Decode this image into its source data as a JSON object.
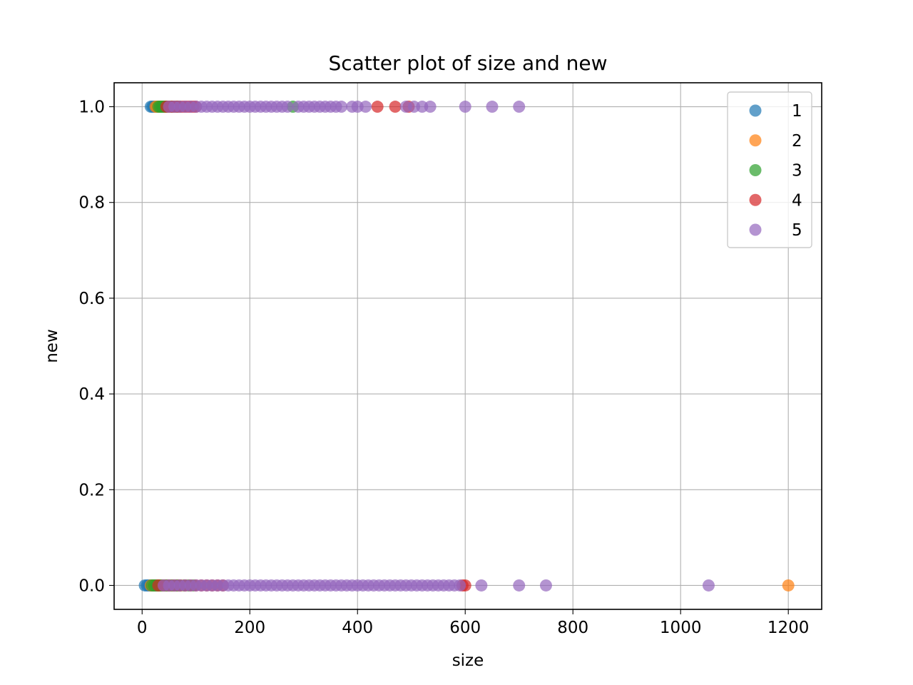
{
  "chart_data": {
    "type": "scatter",
    "title": "Scatter plot of size and new",
    "xlabel": "size",
    "ylabel": "new",
    "xlim": [
      -52,
      1262
    ],
    "ylim": [
      -0.05,
      1.05
    ],
    "xticks": [
      0,
      200,
      400,
      600,
      800,
      1000,
      1200
    ],
    "xtick_labels": [
      "0",
      "200",
      "400",
      "600",
      "800",
      "1000",
      "1200"
    ],
    "yticks": [
      0.0,
      0.2,
      0.4,
      0.6,
      0.8,
      1.0
    ],
    "ytick_labels": [
      "0.0",
      "0.2",
      "0.4",
      "0.6",
      "0.8",
      "1.0"
    ],
    "grid": true,
    "legend_position": "top-right",
    "series": [
      {
        "name": "1",
        "color": "#1f77b4",
        "points": [
          [
            5,
            0
          ],
          [
            9,
            0
          ],
          [
            12,
            0
          ],
          [
            15,
            0
          ],
          [
            18,
            0
          ],
          [
            21,
            0
          ],
          [
            24,
            0
          ],
          [
            27,
            0
          ],
          [
            30,
            0
          ],
          [
            34,
            0
          ],
          [
            38,
            0
          ],
          [
            42,
            0
          ],
          [
            46,
            0
          ],
          [
            50,
            0
          ],
          [
            55,
            0
          ],
          [
            60,
            0
          ],
          [
            65,
            0
          ],
          [
            70,
            0
          ],
          [
            16,
            1
          ],
          [
            19,
            1
          ],
          [
            22,
            1
          ],
          [
            25,
            1
          ],
          [
            28,
            1
          ],
          [
            31,
            1
          ],
          [
            34,
            1
          ],
          [
            38,
            1
          ],
          [
            42,
            1
          ],
          [
            46,
            1
          ],
          [
            50,
            1
          ]
        ]
      },
      {
        "name": "2",
        "color": "#ff7f0e",
        "points": [
          [
            16,
            0
          ],
          [
            20,
            0
          ],
          [
            24,
            0
          ],
          [
            28,
            0
          ],
          [
            32,
            0
          ],
          [
            36,
            0
          ],
          [
            40,
            0
          ],
          [
            45,
            0
          ],
          [
            50,
            0
          ],
          [
            55,
            0
          ],
          [
            60,
            0
          ],
          [
            66,
            0
          ],
          [
            72,
            0
          ],
          [
            80,
            0
          ],
          [
            1200,
            0
          ],
          [
            25,
            1
          ],
          [
            28,
            1
          ],
          [
            31,
            1
          ],
          [
            34,
            1
          ],
          [
            37,
            1
          ],
          [
            40,
            1
          ],
          [
            44,
            1
          ],
          [
            48,
            1
          ],
          [
            52,
            1
          ],
          [
            56,
            1
          ],
          [
            60,
            1
          ]
        ]
      },
      {
        "name": "3",
        "color": "#2ca02c",
        "points": [
          [
            18,
            0
          ],
          [
            22,
            0
          ],
          [
            26,
            0
          ],
          [
            30,
            0
          ],
          [
            34,
            0
          ],
          [
            38,
            0
          ],
          [
            42,
            0
          ],
          [
            47,
            0
          ],
          [
            52,
            0
          ],
          [
            58,
            0
          ],
          [
            64,
            0
          ],
          [
            70,
            0
          ],
          [
            78,
            0
          ],
          [
            86,
            0
          ],
          [
            95,
            0
          ],
          [
            30,
            1
          ],
          [
            33,
            1
          ],
          [
            36,
            1
          ],
          [
            39,
            1
          ],
          [
            42,
            1
          ],
          [
            45,
            1
          ],
          [
            48,
            1
          ],
          [
            52,
            1
          ],
          [
            56,
            1
          ],
          [
            60,
            1
          ],
          [
            65,
            1
          ],
          [
            70,
            1
          ],
          [
            280,
            1
          ]
        ]
      },
      {
        "name": "4",
        "color": "#d62728",
        "points": [
          [
            30,
            0
          ],
          [
            40,
            0
          ],
          [
            50,
            0
          ],
          [
            60,
            0
          ],
          [
            70,
            0
          ],
          [
            80,
            0
          ],
          [
            90,
            0
          ],
          [
            100,
            0
          ],
          [
            110,
            0
          ],
          [
            120,
            0
          ],
          [
            130,
            0
          ],
          [
            140,
            0
          ],
          [
            150,
            0
          ],
          [
            595,
            0
          ],
          [
            600,
            0
          ],
          [
            45,
            1
          ],
          [
            50,
            1
          ],
          [
            55,
            1
          ],
          [
            60,
            1
          ],
          [
            65,
            1
          ],
          [
            70,
            1
          ],
          [
            75,
            1
          ],
          [
            80,
            1
          ],
          [
            85,
            1
          ],
          [
            90,
            1
          ],
          [
            95,
            1
          ],
          [
            100,
            1
          ],
          [
            437,
            1
          ],
          [
            470,
            1
          ],
          [
            495,
            1
          ]
        ]
      },
      {
        "name": "5",
        "color": "#9467bd",
        "points": [
          [
            40,
            0
          ],
          [
            50,
            0
          ],
          [
            60,
            0
          ],
          [
            70,
            0
          ],
          [
            80,
            0
          ],
          [
            90,
            0
          ],
          [
            100,
            0
          ],
          [
            110,
            0
          ],
          [
            120,
            0
          ],
          [
            130,
            0
          ],
          [
            140,
            0
          ],
          [
            150,
            0
          ],
          [
            160,
            0
          ],
          [
            170,
            0
          ],
          [
            180,
            0
          ],
          [
            190,
            0
          ],
          [
            200,
            0
          ],
          [
            210,
            0
          ],
          [
            220,
            0
          ],
          [
            230,
            0
          ],
          [
            240,
            0
          ],
          [
            250,
            0
          ],
          [
            260,
            0
          ],
          [
            270,
            0
          ],
          [
            280,
            0
          ],
          [
            290,
            0
          ],
          [
            300,
            0
          ],
          [
            310,
            0
          ],
          [
            320,
            0
          ],
          [
            330,
            0
          ],
          [
            340,
            0
          ],
          [
            350,
            0
          ],
          [
            360,
            0
          ],
          [
            370,
            0
          ],
          [
            380,
            0
          ],
          [
            390,
            0
          ],
          [
            400,
            0
          ],
          [
            410,
            0
          ],
          [
            420,
            0
          ],
          [
            430,
            0
          ],
          [
            440,
            0
          ],
          [
            450,
            0
          ],
          [
            460,
            0
          ],
          [
            470,
            0
          ],
          [
            480,
            0
          ],
          [
            490,
            0
          ],
          [
            500,
            0
          ],
          [
            510,
            0
          ],
          [
            520,
            0
          ],
          [
            530,
            0
          ],
          [
            540,
            0
          ],
          [
            550,
            0
          ],
          [
            560,
            0
          ],
          [
            570,
            0
          ],
          [
            580,
            0
          ],
          [
            590,
            0
          ],
          [
            630,
            0
          ],
          [
            700,
            0
          ],
          [
            750,
            0
          ],
          [
            1052,
            0
          ],
          [
            50,
            1
          ],
          [
            60,
            1
          ],
          [
            70,
            1
          ],
          [
            80,
            1
          ],
          [
            90,
            1
          ],
          [
            100,
            1
          ],
          [
            110,
            1
          ],
          [
            120,
            1
          ],
          [
            130,
            1
          ],
          [
            140,
            1
          ],
          [
            150,
            1
          ],
          [
            160,
            1
          ],
          [
            170,
            1
          ],
          [
            180,
            1
          ],
          [
            190,
            1
          ],
          [
            200,
            1
          ],
          [
            210,
            1
          ],
          [
            220,
            1
          ],
          [
            230,
            1
          ],
          [
            240,
            1
          ],
          [
            250,
            1
          ],
          [
            260,
            1
          ],
          [
            270,
            1
          ],
          [
            290,
            1
          ],
          [
            300,
            1
          ],
          [
            310,
            1
          ],
          [
            320,
            1
          ],
          [
            330,
            1
          ],
          [
            340,
            1
          ],
          [
            350,
            1
          ],
          [
            360,
            1
          ],
          [
            370,
            1
          ],
          [
            390,
            1
          ],
          [
            400,
            1
          ],
          [
            415,
            1
          ],
          [
            490,
            1
          ],
          [
            505,
            1
          ],
          [
            520,
            1
          ],
          [
            535,
            1
          ],
          [
            600,
            1
          ],
          [
            650,
            1
          ],
          [
            700,
            1
          ]
        ]
      }
    ]
  }
}
